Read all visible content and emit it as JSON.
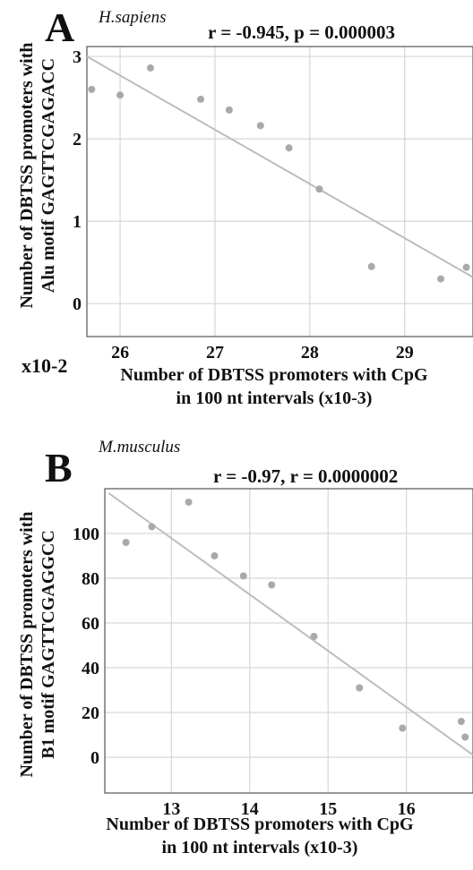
{
  "chart_data": [
    {
      "type": "scatter",
      "panel_letter": "A",
      "species": "H.sapiens",
      "stats": "r = -0.945, p = 0.000003",
      "ylabel_lines": [
        "Number of DBTSS promoters with",
        "Alu motif GAGTTCGAGACC"
      ],
      "xlabel_lines": [
        "Number of DBTSS promoters with CpG",
        "in 100 nt intervals (x10-3)"
      ],
      "x_multiplier": "x10-2",
      "xlim": [
        25.65,
        29.72
      ],
      "ylim": [
        -0.4,
        3.12
      ],
      "xticks": [
        26,
        27,
        28,
        29
      ],
      "yticks": [
        0,
        1,
        2,
        3
      ],
      "grid": true,
      "points": [
        {
          "x": 25.7,
          "y": 2.6
        },
        {
          "x": 26.0,
          "y": 2.53
        },
        {
          "x": 26.32,
          "y": 2.86
        },
        {
          "x": 26.85,
          "y": 2.48
        },
        {
          "x": 27.15,
          "y": 2.35
        },
        {
          "x": 27.48,
          "y": 2.16
        },
        {
          "x": 27.78,
          "y": 1.89
        },
        {
          "x": 28.1,
          "y": 1.39
        },
        {
          "x": 28.65,
          "y": 0.45
        },
        {
          "x": 29.38,
          "y": 0.3
        },
        {
          "x": 29.65,
          "y": 0.44
        }
      ],
      "trend_line": {
        "x": [
          25.65,
          29.72
        ],
        "y": [
          3.0,
          0.32
        ]
      }
    },
    {
      "type": "scatter",
      "panel_letter": "B",
      "species": "M.musculus",
      "stats": "r = -0.97,   r = 0.0000002",
      "ylabel_lines": [
        "Number of DBTSS promoters with",
        "B1 motif GAGTTCGAGGCC"
      ],
      "xlabel_lines": [
        "Number of DBTSS promoters with CpG",
        "in 100 nt intervals (x10-3)"
      ],
      "xlim": [
        12.15,
        16.85
      ],
      "ylim": [
        -16,
        120
      ],
      "xticks": [
        13,
        14,
        15,
        16
      ],
      "yticks": [
        0,
        20,
        40,
        60,
        80,
        100
      ],
      "grid": true,
      "points": [
        {
          "x": 12.42,
          "y": 96
        },
        {
          "x": 12.75,
          "y": 103
        },
        {
          "x": 13.22,
          "y": 114
        },
        {
          "x": 13.55,
          "y": 90
        },
        {
          "x": 13.92,
          "y": 81
        },
        {
          "x": 14.28,
          "y": 77
        },
        {
          "x": 14.82,
          "y": 54
        },
        {
          "x": 15.4,
          "y": 31
        },
        {
          "x": 15.95,
          "y": 13
        },
        {
          "x": 16.7,
          "y": 16
        },
        {
          "x": 16.75,
          "y": 9
        }
      ],
      "trend_line": {
        "x": [
          12.2,
          16.85
        ],
        "y": [
          118,
          1
        ]
      }
    }
  ]
}
